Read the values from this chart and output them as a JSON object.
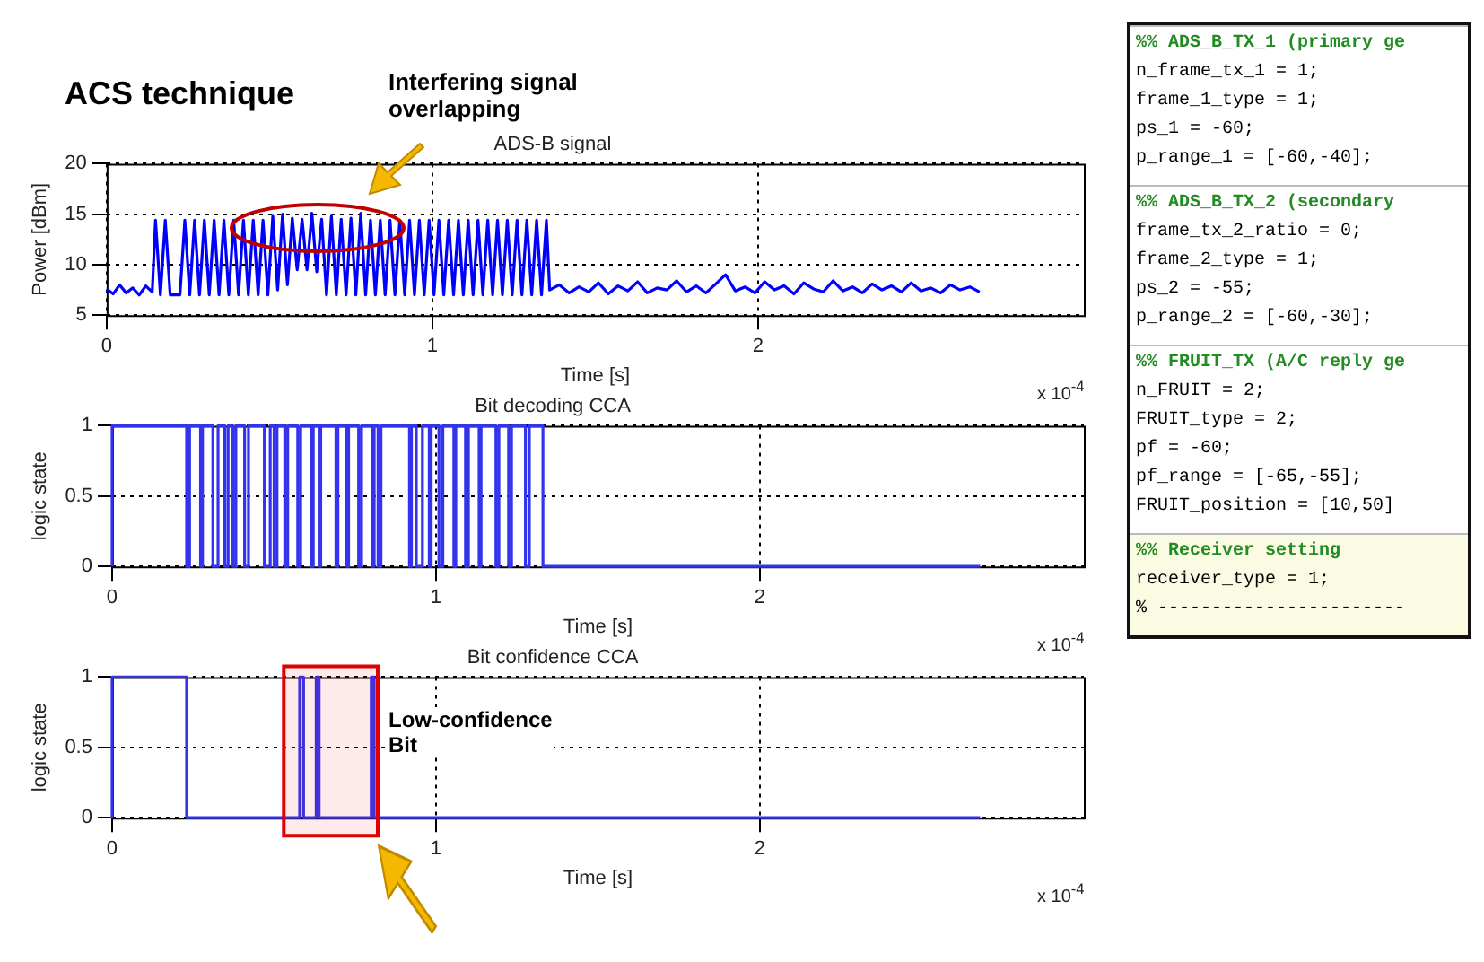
{
  "chart_data": [
    {
      "type": "line",
      "title": "ACS technique",
      "subtitle": "ADS-B signal",
      "xlabel": "Time [s]",
      "ylabel": "Power [dBm]",
      "color": "#0000ff",
      "xlim": [
        0,
        3
      ],
      "xticks": [
        0,
        1,
        2
      ],
      "ylim": [
        5,
        20
      ],
      "yticks": [
        5,
        10,
        15,
        20
      ],
      "grid": true,
      "line_style": "solid",
      "annotations": [
        "Interfering signal overlapping",
        "x 10$^{-4}$"
      ],
      "x": [
        0,
        0.02,
        0.04,
        0.06,
        0.08,
        0.1,
        0.12,
        0.14,
        0.15,
        0.165,
        0.18,
        0.195,
        0.21,
        0.225,
        0.24,
        0.255,
        0.27,
        0.285,
        0.3,
        0.315,
        0.33,
        0.345,
        0.36,
        0.375,
        0.39,
        0.405,
        0.42,
        0.435,
        0.45,
        0.465,
        0.48,
        0.495,
        0.51,
        0.525,
        0.54,
        0.555,
        0.57,
        0.585,
        0.6,
        0.615,
        0.63,
        0.645,
        0.66,
        0.675,
        0.69,
        0.705,
        0.72,
        0.735,
        0.75,
        0.765,
        0.78,
        0.795,
        0.81,
        0.825,
        0.84,
        0.855,
        0.87,
        0.885,
        0.9,
        0.915,
        0.93,
        0.945,
        0.96,
        0.975,
        0.99,
        1.005,
        1.02,
        1.035,
        1.05,
        1.065,
        1.08,
        1.095,
        1.11,
        1.125,
        1.14,
        1.155,
        1.17,
        1.185,
        1.2,
        1.215,
        1.23,
        1.245,
        1.26,
        1.275,
        1.29,
        1.305,
        1.32,
        1.335,
        1.35,
        1.36,
        1.39,
        1.42,
        1.45,
        1.48,
        1.51,
        1.54,
        1.57,
        1.6,
        1.63,
        1.66,
        1.69,
        1.72,
        1.75,
        1.78,
        1.81,
        1.84,
        1.87,
        1.9,
        1.93,
        1.96,
        1.99,
        2.02,
        2.05,
        2.08,
        2.11,
        2.14,
        2.17,
        2.2,
        2.23,
        2.26,
        2.29,
        2.32,
        2.35,
        2.38,
        2.41,
        2.44,
        2.47,
        2.5,
        2.53,
        2.56,
        2.59,
        2.62,
        2.65,
        2.68
      ],
      "values": [
        7.6,
        7.1,
        8.0,
        7.2,
        7.7,
        7.0,
        7.9,
        7.3,
        14.4,
        7,
        14.4,
        7,
        7,
        7,
        14.4,
        7,
        14.4,
        7,
        14.4,
        7,
        14.4,
        7,
        14.4,
        7,
        14.4,
        7,
        14.4,
        7,
        14.4,
        7,
        14.4,
        7,
        14.8,
        7.5,
        15,
        8,
        14.6,
        9.5,
        14.5,
        9.5,
        15.1,
        9.3,
        14.5,
        7,
        14.8,
        7,
        14.5,
        7,
        14.6,
        7,
        15.1,
        7,
        14.4,
        7,
        14.4,
        7,
        14.4,
        7,
        14.4,
        7,
        14.4,
        7,
        14.4,
        7,
        14.4,
        7,
        14.4,
        7,
        14.4,
        7,
        14.4,
        7,
        14.4,
        7,
        14.4,
        7,
        14.4,
        7,
        14.4,
        7,
        14.4,
        7,
        14.4,
        7,
        14.4,
        7,
        14.4,
        7,
        14.4,
        7.5,
        8.0,
        7.2,
        7.8,
        7.3,
        8.2,
        7.1,
        7.9,
        7.4,
        8.3,
        7.2,
        7.7,
        7.5,
        8.4,
        7.3,
        7.9,
        7.2,
        8.1,
        9.0,
        7.4,
        7.8,
        7.2,
        8.3,
        7.5,
        7.9,
        7.1,
        8.2,
        7.6,
        7.3,
        8.4,
        7.4,
        7.8,
        7.2,
        8.1,
        7.5,
        7.9,
        7.3,
        8.2,
        7.4,
        7.7,
        7.2,
        8.0,
        7.5,
        7.8,
        7.3
      ]
    },
    {
      "type": "step",
      "title": "Bit decoding CCA",
      "xlabel": "Time [s]",
      "ylabel": "logic state",
      "color": "#3333ee",
      "xlim": [
        0,
        3
      ],
      "xticks": [
        0,
        1,
        2
      ],
      "ylim": [
        0,
        1
      ],
      "yticks": [
        0,
        0.5,
        1
      ],
      "grid": true,
      "line_style": "solid",
      "annotations": [
        "x 10$^{-4}$"
      ],
      "x": [
        0,
        0.23,
        0.239,
        0.273,
        0.279,
        0.311,
        0.327,
        0.348,
        0.358,
        0.373,
        0.382,
        0.409,
        0.421,
        0.47,
        0.488,
        0.5,
        0.509,
        0.533,
        0.542,
        0.573,
        0.582,
        0.615,
        0.621,
        0.639,
        0.644,
        0.691,
        0.697,
        0.724,
        0.73,
        0.761,
        0.77,
        0.803,
        0.809,
        0.821,
        0.83,
        0.918,
        0.924,
        0.939,
        0.958,
        0.979,
        0.985,
        1.009,
        1.021,
        1.055,
        1.061,
        1.091,
        1.1,
        1.133,
        1.139,
        1.185,
        1.194,
        1.224,
        1.233,
        1.276,
        1.288,
        1.33,
        1.342,
        2.68
      ],
      "values": [
        0,
        1,
        0,
        1,
        0,
        1,
        0,
        1,
        0,
        1,
        0,
        1,
        0,
        1,
        0,
        1,
        0,
        1,
        0,
        1,
        0,
        1,
        0,
        1,
        0,
        1,
        0,
        1,
        0,
        1,
        0,
        1,
        0,
        1,
        0,
        1,
        0,
        1,
        0,
        1,
        0,
        1,
        0,
        1,
        0,
        1,
        0,
        1,
        0,
        1,
        0,
        1,
        0,
        1,
        0,
        1,
        0,
        0
      ]
    },
    {
      "type": "step",
      "title": "Bit confidence CCA",
      "xlabel": "Time [s]",
      "ylabel": "logic state",
      "color": "#3333ee",
      "xlim": [
        0,
        3
      ],
      "xticks": [
        0,
        1,
        2
      ],
      "ylim": [
        0,
        1
      ],
      "yticks": [
        0,
        0.5,
        1
      ],
      "grid": true,
      "line_style": "solid",
      "annotations": [
        "x 10$^{-4}$"
      ],
      "bands": [
        {
          "axis": "x",
          "from": 0.53,
          "to": 0.82,
          "label": "Low-confidence Bit",
          "color": "#e00000"
        }
      ],
      "x": [
        0,
        0.23,
        0.579,
        0.591,
        0.63,
        0.639,
        0.8,
        0.809,
        1.352,
        2.68
      ],
      "values": [
        0,
        1,
        0,
        1,
        0,
        1,
        0,
        1,
        0,
        0
      ]
    },
    {
      "type": "other",
      "title": "%% ADS_B_TX_1 (primary ge",
      "annotations": [
        "n_frame_tx_1 = 1;",
        "frame_1_type = 1;",
        "ps_1 = -60;",
        "p_range_1 = [-60,-40];"
      ]
    },
    {
      "type": "other",
      "title": "%% ADS_B_TX_2 (secondary",
      "annotations": [
        "frame_tx_2_ratio = 0;",
        "frame_2_type = 1;",
        "ps_2 = -55;",
        "p_range_2 = [-60,-30];"
      ]
    },
    {
      "type": "other",
      "title": "%% FRUIT_TX (A/C reply ge",
      "annotations": [
        "n_FRUIT = 2;",
        "FRUIT_type = 2;",
        "pf = -60;",
        "pf_range = [-65,-55];",
        "FRUIT_position = [10,50]"
      ]
    },
    {
      "type": "other",
      "title": "%% Receiver setting",
      "annotations": [
        "receiver_type = 1;",
        "% -----------------------"
      ]
    }
  ]
}
